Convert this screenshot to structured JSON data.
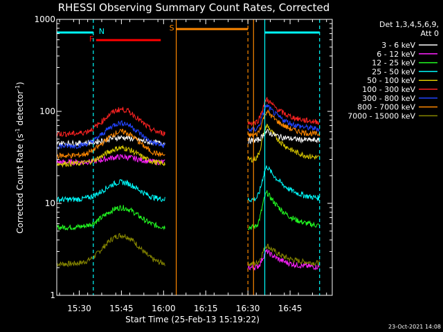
{
  "chart_data": {
    "type": "line",
    "title": "RHESSI Observing Summary Count Rates, Corrected",
    "xlabel": "Start Time (25-Feb-13 15:19:22)",
    "ylabel_main": "Corrected Count Rate (s",
    "ylabel_sup1": "-1",
    "ylabel_mid": " detector",
    "ylabel_sup2": "-1",
    "ylabel_end": ")",
    "yscale": "log",
    "ylim": [
      1,
      1000
    ],
    "y_ticks": [
      {
        "value": 1,
        "label": "1"
      },
      {
        "value": 10,
        "label": "10"
      },
      {
        "value": 100,
        "label": "100"
      },
      {
        "value": 1000,
        "label": "1000"
      }
    ],
    "xlim_minutes": [
      15.3667,
      17.0
    ],
    "x_ticks": [
      {
        "value": 15.5,
        "label": "15:30"
      },
      {
        "value": 15.75,
        "label": "15:45"
      },
      {
        "value": 16.0,
        "label": "16:00"
      },
      {
        "value": 16.25,
        "label": "16:15"
      },
      {
        "value": 16.5,
        "label": "16:30"
      },
      {
        "value": 16.75,
        "label": "16:45"
      }
    ],
    "legend_header": [
      "Det 1,3,4,5,6,9,",
      "Att 0"
    ],
    "legend_placement": "right",
    "series": [
      {
        "name": "3 - 6 keV",
        "color": "#ffffff",
        "seg1": {
          "base": 45,
          "peak": 52
        },
        "seg2": {
          "base": 48,
          "peak": 60
        }
      },
      {
        "name": "6 - 12 keV",
        "color": "#ff22ff",
        "seg1": {
          "base": 28,
          "peak": 32
        },
        "seg2": {
          "base": 2.0,
          "peak": 3
        }
      },
      {
        "name": "12 - 25 keV",
        "color": "#22ff22",
        "seg1": {
          "base": 5.5,
          "peak": 9
        },
        "seg2": {
          "base": 5.5,
          "peak": 13
        }
      },
      {
        "name": "25 - 50 keV",
        "color": "#00ffff",
        "seg1": {
          "base": 11,
          "peak": 17
        },
        "seg2": {
          "base": 11,
          "peak": 25
        }
      },
      {
        "name": "50 - 100 keV",
        "color": "#ddcc00",
        "seg1": {
          "base": 27,
          "peak": 40
        },
        "seg2": {
          "base": 30,
          "peak": 70
        }
      },
      {
        "name": "100 - 300 keV",
        "color": "#ff2222",
        "seg1": {
          "base": 57,
          "peak": 105
        },
        "seg2": {
          "base": 75,
          "peak": 135
        }
      },
      {
        "name": "300 - 800 keV",
        "color": "#2244ff",
        "seg1": {
          "base": 42,
          "peak": 75
        },
        "seg2": {
          "base": 63,
          "peak": 115
        }
      },
      {
        "name": "800 - 7000 keV",
        "color": "#ff8800",
        "seg1": {
          "base": 33,
          "peak": 60
        },
        "seg2": {
          "base": 55,
          "peak": 100
        }
      },
      {
        "name": "7000 - 15000 keV",
        "color": "#888800",
        "seg1": {
          "base": 2.2,
          "peak": 4.5
        },
        "seg2": {
          "base": 2.2,
          "peak": 3.5
        }
      }
    ],
    "flags": [
      {
        "label": "N",
        "color": "#00ffff",
        "spans": [
          [
            15.3667,
            15.5833
          ],
          [
            16.6,
            16.925
          ]
        ]
      },
      {
        "label": "F",
        "color": "#ff0000",
        "spans": [
          [
            15.6,
            15.9833
          ]
        ]
      },
      {
        "label": "S",
        "color": "#ff8800",
        "spans": [
          [
            16.075,
            16.5
          ]
        ]
      }
    ],
    "vertical_markers": [
      {
        "time": 15.5833,
        "color": "#00ffff",
        "style": "dashed"
      },
      {
        "time": 16.075,
        "color": "#ff8800",
        "style": "solid"
      },
      {
        "time": 16.5,
        "color": "#ff8800",
        "style": "dashed"
      },
      {
        "time": 16.5333,
        "color": "#ff8800",
        "style": "solid"
      },
      {
        "time": 16.6,
        "color": "#00ffff",
        "style": "solid"
      },
      {
        "time": 16.925,
        "color": "#00ffff",
        "style": "dashed"
      }
    ]
  },
  "footer_date": "23-Oct-2021 14:08"
}
